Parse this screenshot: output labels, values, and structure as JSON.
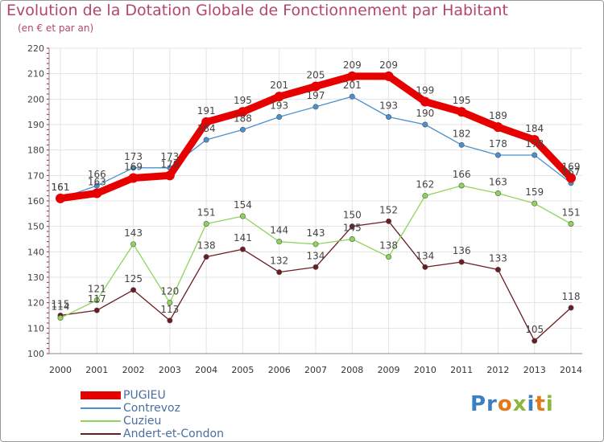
{
  "header": {
    "title": "Evolution de la Dotation Globale de Fonctionnement par Habitant",
    "subtitle": "(en € et par an)"
  },
  "logo": {
    "text": "Proxiti"
  },
  "chart_data": {
    "type": "line",
    "x": [
      "2000",
      "2001",
      "2002",
      "2003",
      "2004",
      "2005",
      "2006",
      "2007",
      "2008",
      "2009",
      "2010",
      "2011",
      "2012",
      "2013",
      "2014"
    ],
    "ylim": [
      100,
      220
    ],
    "yticks": [
      100,
      110,
      120,
      130,
      140,
      150,
      160,
      170,
      180,
      190,
      200,
      210,
      220
    ],
    "grid": true,
    "legend_position": "bottom-left",
    "series": [
      {
        "name": "PUGIEU",
        "color": "#e60000",
        "values": [
          161,
          163,
          169,
          170,
          191,
          195,
          201,
          205,
          209,
          209,
          199,
          195,
          189,
          184,
          169
        ]
      },
      {
        "name": "Contrevoz",
        "color": "#4a90d0",
        "values": [
          161,
          166,
          173,
          173,
          184,
          188,
          193,
          197,
          201,
          193,
          190,
          182,
          178,
          178,
          167
        ]
      },
      {
        "name": "Cuzieu",
        "color": "#8ed45a",
        "values": [
          114,
          121,
          143,
          120,
          151,
          154,
          144,
          143,
          145,
          138,
          162,
          166,
          163,
          159,
          151
        ]
      },
      {
        "name": "Andert-et-Condon",
        "color": "#6b1c22",
        "values": [
          115,
          117,
          125,
          113,
          138,
          141,
          132,
          134,
          150,
          152,
          134,
          136,
          133,
          105,
          118
        ]
      }
    ]
  }
}
